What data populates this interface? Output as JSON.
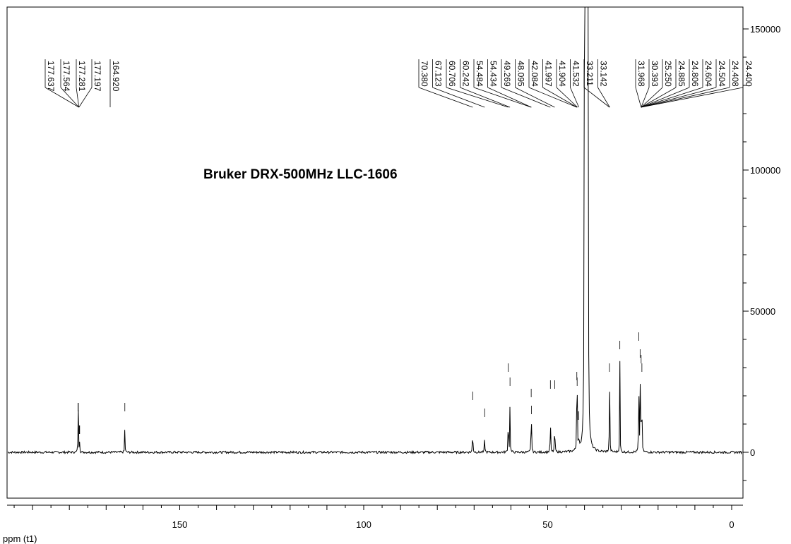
{
  "chart_data": {
    "type": "line",
    "title": "Bruker DRX-500MHz LLC-1606",
    "xlabel": "ppm (t1)",
    "ylabel": "",
    "xlim": [
      195,
      -2
    ],
    "ylim": [
      -11000,
      157000
    ],
    "x_reversed": true,
    "grid": false,
    "x_ticks": [
      150,
      100,
      50,
      0
    ],
    "x_tick_labels": [
      "150",
      "100",
      "50",
      "0"
    ],
    "y_ticks": [
      0,
      50000,
      100000,
      150000
    ],
    "y_tick_labels": [
      "0",
      "50000",
      "100000",
      "150000"
    ],
    "peak_labels": [
      "177.637",
      "177.564",
      "177.281",
      "177.197",
      "164.920",
      "70.380",
      "67.123",
      "60.706",
      "60.242",
      "54.484",
      "54.434",
      "49.269",
      "48.095",
      "42.084",
      "41.997",
      "41.904",
      "41.532",
      "33.211",
      "33.142",
      "31.968",
      "30.393",
      "25.250",
      "24.885",
      "24.806",
      "24.604",
      "24.504",
      "24.408",
      "24.400"
    ],
    "series": [
      {
        "x": [
          177.637,
          177.564,
          177.281,
          177.197,
          164.92,
          70.38,
          67.123,
          60.706,
          60.242,
          54.484,
          54.434,
          49.269,
          48.095,
          42.084,
          41.997,
          41.904,
          41.532,
          40.0,
          39.83,
          39.66,
          39.5,
          39.33,
          39.16,
          39.0,
          33.211,
          33.142,
          30.393,
          25.25,
          24.885,
          24.604,
          24.4
        ],
        "y": [
          11000,
          11000,
          3000,
          3000,
          11000,
          15000,
          9000,
          25000,
          20000,
          16000,
          10000,
          19000,
          19000,
          22000,
          20000,
          8000,
          8000,
          157000,
          157000,
          157000,
          157000,
          157000,
          157000,
          157000,
          25000,
          12000,
          33000,
          36000,
          30000,
          28000,
          25000
        ]
      }
    ]
  }
}
